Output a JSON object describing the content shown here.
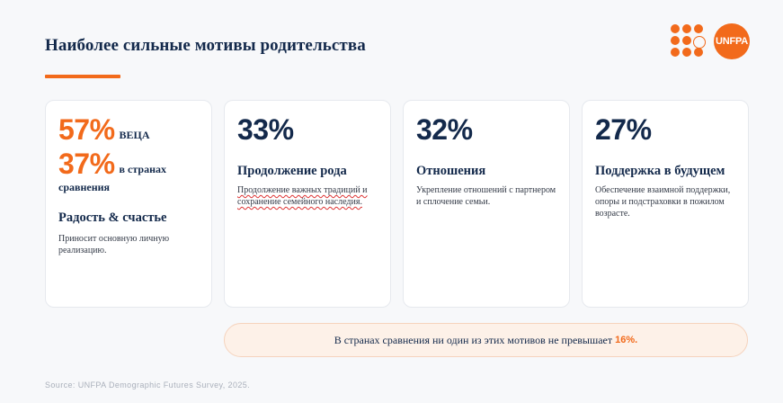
{
  "header": {
    "title": "Наиболее сильные мотивы родительства",
    "logo_text": "UNFPA"
  },
  "colors": {
    "accent": "#f26a1b",
    "navy": "#13294b"
  },
  "cards": [
    {
      "stat_primary": "57%",
      "stat_primary_label": "ВЕЦА",
      "stat_secondary": "37%",
      "stat_secondary_label": "в странах",
      "stat_secondary_label2": "сравнения",
      "heading": "Радость & счастье",
      "description": "Приносит основную личную реализацию."
    },
    {
      "stat": "33%",
      "heading": "Продолжение рода",
      "description": "Продолжение важных традиций и сохранение семейного наследия."
    },
    {
      "stat": "32%",
      "heading": "Отношения",
      "description": "Укрепление отношений с партнером и сплочение семьи."
    },
    {
      "stat": "27%",
      "heading": "Поддержка в будущем",
      "description": "Обеспечение взаимной поддержки, опоры и подстраховки в пожилом возрасте."
    }
  ],
  "banner": {
    "text": "В странах сравнения ни один из этих мотивов не превышает",
    "highlight": "16%."
  },
  "footer": {
    "source": "Source: UNFPA Demographic Futures Survey, 2025."
  }
}
